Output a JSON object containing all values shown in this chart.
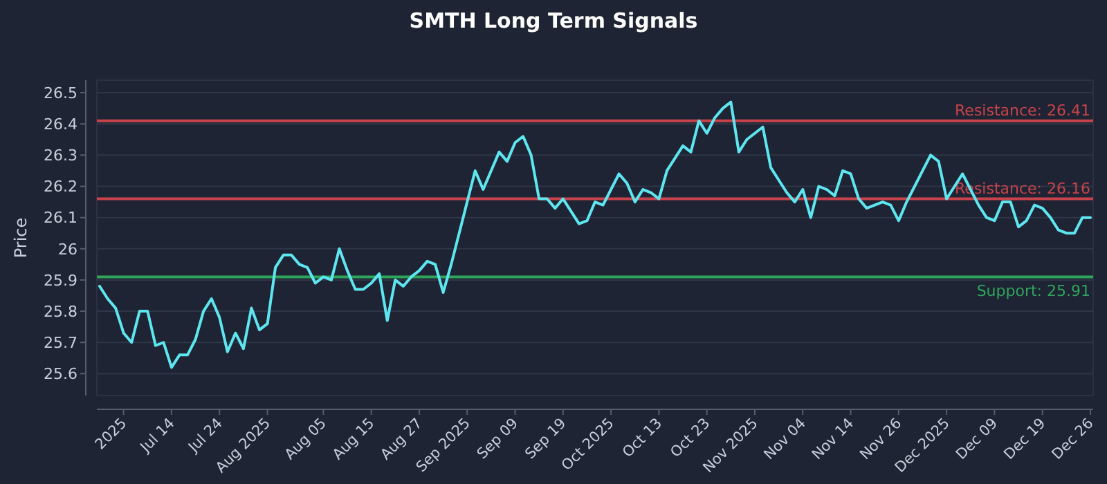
{
  "chart_data": {
    "type": "line",
    "title": "SMTH Long Term Signals",
    "ylabel": "Price",
    "categories": [
      null,
      null,
      null,
      "2025",
      null,
      null,
      null,
      null,
      null,
      "Jul 14",
      null,
      null,
      null,
      null,
      null,
      "Jul 24",
      null,
      null,
      null,
      null,
      null,
      "Aug 2025",
      null,
      null,
      null,
      null,
      null,
      null,
      "Aug 05",
      null,
      null,
      null,
      null,
      null,
      "Aug 15",
      null,
      null,
      null,
      null,
      null,
      "Aug 27",
      null,
      null,
      null,
      null,
      null,
      "Sep 2025",
      null,
      null,
      null,
      null,
      null,
      "Sep 09",
      null,
      null,
      null,
      null,
      null,
      "Sep 19",
      null,
      null,
      null,
      null,
      null,
      "Oct 2025",
      null,
      null,
      null,
      null,
      null,
      "Oct 13",
      null,
      null,
      null,
      null,
      null,
      "Oct 23",
      null,
      null,
      null,
      null,
      null,
      "Nov 2025",
      null,
      null,
      null,
      null,
      null,
      "Nov 04",
      null,
      null,
      null,
      null,
      null,
      "Nov 14",
      null,
      null,
      null,
      null,
      null,
      "Nov 26",
      null,
      null,
      null,
      null,
      null,
      "Dec 2025",
      null,
      null,
      null,
      null,
      null,
      "Dec 09",
      null,
      null,
      null,
      null,
      null,
      "Dec 19",
      null,
      null,
      null,
      null,
      null,
      "Dec 26"
    ],
    "series": [
      {
        "color": "#5ee6f0",
        "values": [
          25.88,
          25.84,
          25.81,
          25.73,
          25.7,
          25.8,
          25.8,
          25.69,
          25.7,
          25.62,
          25.66,
          25.66,
          25.71,
          25.8,
          25.84,
          25.78,
          25.67,
          25.73,
          25.68,
          25.81,
          25.74,
          25.76,
          25.94,
          25.98,
          25.98,
          25.95,
          25.94,
          25.89,
          25.91,
          25.9,
          26.0,
          25.93,
          25.87,
          25.87,
          25.89,
          25.92,
          25.77,
          25.9,
          25.88,
          25.91,
          25.93,
          25.96,
          25.95,
          25.86,
          25.95,
          26.05,
          26.15,
          26.25,
          26.19,
          26.25,
          26.31,
          26.28,
          26.34,
          26.36,
          26.3,
          26.16,
          26.16,
          26.13,
          26.16,
          26.12,
          26.08,
          26.09,
          26.15,
          26.14,
          26.19,
          26.24,
          26.21,
          26.15,
          26.19,
          26.18,
          26.16,
          26.25,
          26.29,
          26.33,
          26.31,
          26.41,
          26.37,
          26.42,
          26.45,
          26.47,
          26.31,
          26.35,
          26.37,
          26.39,
          26.26,
          26.22,
          26.18,
          26.15,
          26.19,
          26.1,
          26.2,
          26.19,
          26.17,
          26.25,
          26.24,
          26.16,
          26.13,
          26.14,
          26.15,
          26.14,
          26.09,
          26.15,
          26.2,
          26.25,
          26.3,
          26.28,
          26.16,
          26.2,
          26.24,
          26.19,
          26.14,
          26.1,
          26.09,
          26.15,
          26.15,
          26.07,
          26.09,
          26.14,
          26.13,
          26.1,
          26.06,
          26.05,
          26.05,
          26.1,
          26.1
        ]
      }
    ],
    "ylim": [
      25.53,
      26.54
    ],
    "yticks": [
      25.6,
      25.7,
      25.8,
      25.9,
      26.0,
      26.1,
      26.2,
      26.3,
      26.4,
      26.5
    ],
    "grid": "y",
    "line_style": "solid",
    "marker": "none",
    "ref_lines": [
      {
        "axis": "y",
        "value": 26.41,
        "label": "Resistance: 26.41",
        "color": "#c8434c"
      },
      {
        "axis": "y",
        "value": 26.16,
        "label": "Resistance: 26.16",
        "color": "#c8434c"
      },
      {
        "axis": "y",
        "value": 25.91,
        "label": "Support: 25.91",
        "color": "#2fa55c"
      }
    ]
  }
}
